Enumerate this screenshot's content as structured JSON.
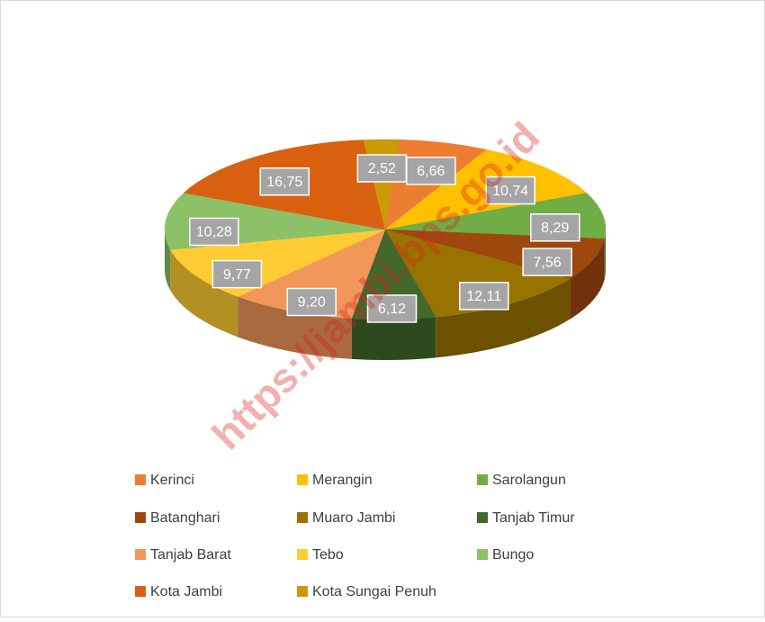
{
  "chart_data": {
    "type": "pie",
    "categories": [
      "Kerinci",
      "Merangin",
      "Sarolangun",
      "Batanghari",
      "Muaro Jambi",
      "Tanjab Timur",
      "Tanjab Barat",
      "Tebo",
      "Bungo",
      "Kota Jambi",
      "Kota Sungai Penuh"
    ],
    "values": [
      6.66,
      10.74,
      8.29,
      7.56,
      12.11,
      6.12,
      9.2,
      9.77,
      10.28,
      16.75,
      2.52
    ],
    "value_labels": [
      "6,66",
      "10,74",
      "8,29",
      "7,56",
      "12,11",
      "6,12",
      "9,20",
      "9,77",
      "10,28",
      "16,75",
      "2,52"
    ],
    "colors": [
      "#ed7d31",
      "#ffc000",
      "#70ad47",
      "#9e480e",
      "#997300",
      "#43682b",
      "#f1975a",
      "#ffcd33",
      "#8cc168",
      "#d9600f",
      "#cc9a06"
    ],
    "legend": "bottom",
    "watermark": "https://jambi.bps.go.id"
  }
}
